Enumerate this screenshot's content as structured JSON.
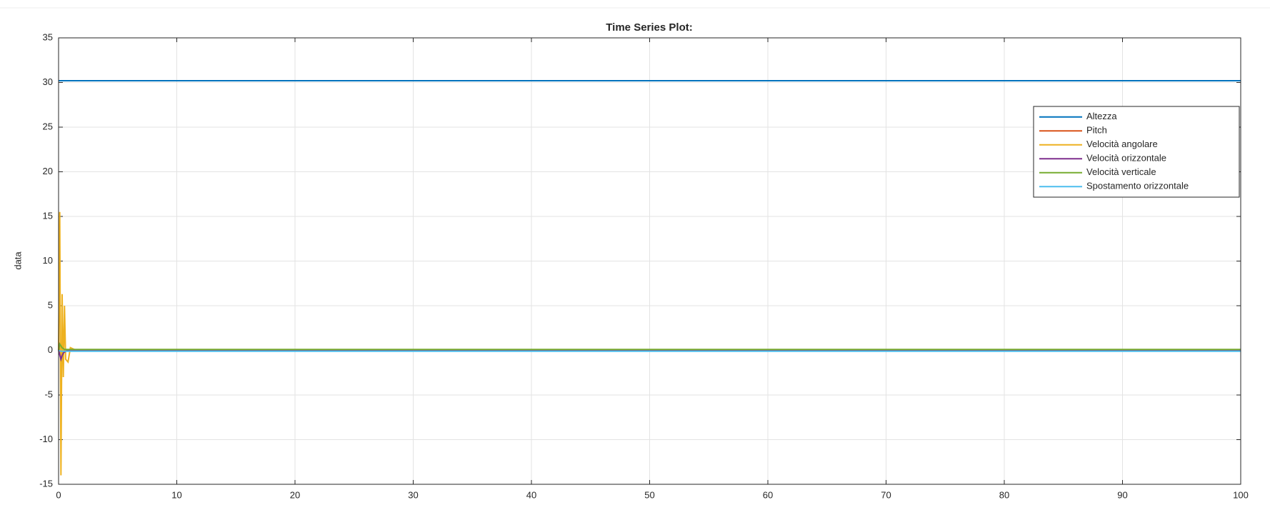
{
  "chart_data": {
    "type": "line",
    "title": "Time Series Plot:",
    "ylabel": "data",
    "x": [
      0,
      0.1,
      0.2,
      0.3,
      0.4,
      0.5,
      0.6,
      0.8,
      1,
      1.5,
      3,
      100
    ],
    "series": [
      {
        "name": "Altezza",
        "color": "#0072BD",
        "values": [
          30.2,
          30.2,
          30.2,
          30.2,
          30.2,
          30.2,
          30.2,
          30.2,
          30.2,
          30.2,
          30.2,
          30.2
        ]
      },
      {
        "name": "Pitch",
        "color": "#D95319",
        "values": [
          0,
          0.2,
          -0.3,
          0.1,
          0,
          0,
          0,
          0,
          0,
          0,
          0,
          0
        ]
      },
      {
        "name": "Velocità angolare",
        "color": "#EDB120",
        "values": [
          0,
          15.5,
          -14,
          6.3,
          -3,
          5,
          -1,
          -1.3,
          0.3,
          0,
          0,
          0
        ]
      },
      {
        "name": "Velocità orizzontale",
        "color": "#7E2F8E",
        "values": [
          0,
          -0.5,
          -1,
          -0.6,
          -0.3,
          -0.2,
          -0.1,
          0,
          0,
          0,
          0,
          0
        ]
      },
      {
        "name": "Velocità verticale",
        "color": "#77AC30",
        "values": [
          0,
          0.7,
          0.5,
          0.3,
          0.2,
          0.1,
          0.1,
          0.1,
          0.1,
          0.1,
          0.1,
          0.1
        ]
      },
      {
        "name": "Spostamento orizzontale",
        "color": "#4DBEEE",
        "values": [
          0,
          -0.05,
          -0.1,
          -0.1,
          -0.1,
          -0.1,
          -0.1,
          -0.1,
          -0.1,
          -0.1,
          -0.1,
          -0.1
        ]
      }
    ],
    "xlim": [
      0,
      100
    ],
    "xticks": [
      0,
      10,
      20,
      30,
      40,
      50,
      60,
      70,
      80,
      90,
      100
    ],
    "ylim": [
      -15,
      35
    ],
    "yticks": [
      -15,
      -10,
      -5,
      0,
      5,
      10,
      15,
      20,
      25,
      30,
      35
    ],
    "grid": true,
    "legend": "northeast"
  }
}
